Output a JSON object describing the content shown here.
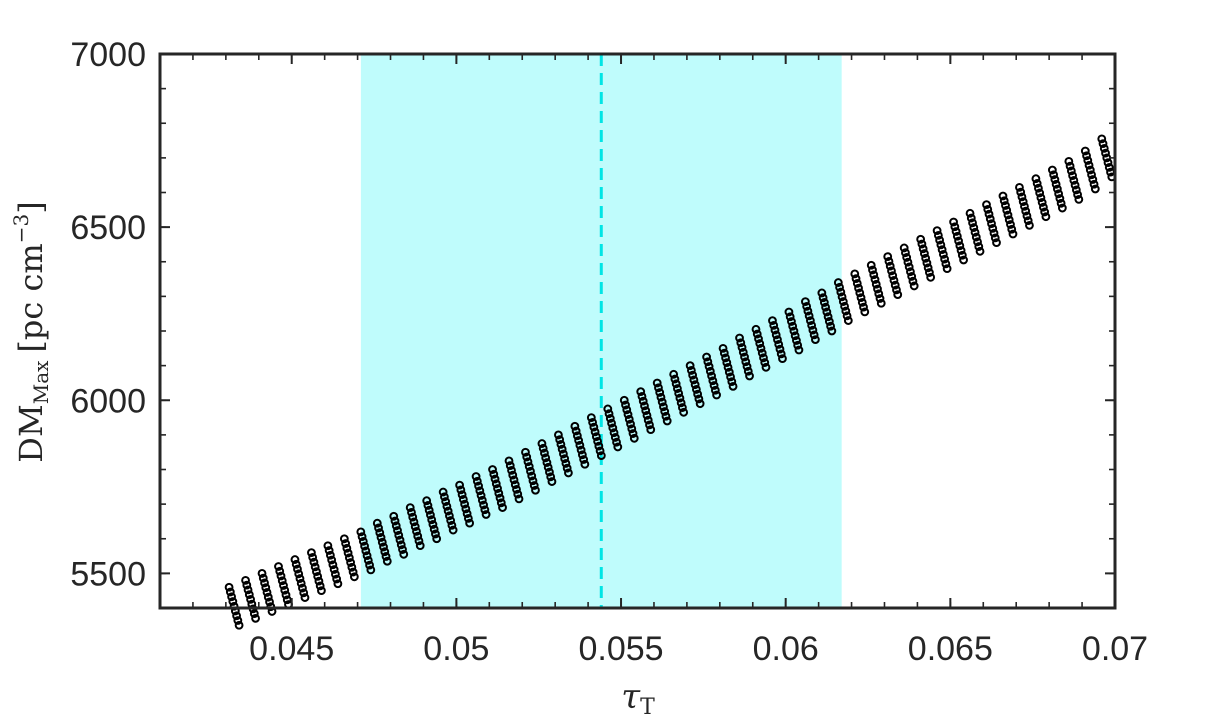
{
  "chart_data": {
    "type": "scatter",
    "title": "",
    "xlabel": {
      "symbol": "τ",
      "subscript": "T"
    },
    "ylabel": {
      "main": "DM",
      "subscript": "Max",
      "unit": "[pc cm",
      "superscript": "−3",
      "unit_close": "]"
    },
    "xlim": [
      0.041,
      0.07
    ],
    "ylim": [
      5400,
      7000
    ],
    "xticks": [
      0.045,
      0.05,
      0.055,
      0.06,
      0.065,
      0.07
    ],
    "xtick_labels": [
      "0.045",
      "0.05",
      "0.055",
      "0.06",
      "0.065",
      "0.07"
    ],
    "yticks": [
      5500,
      6000,
      6500,
      7000
    ],
    "ytick_labels": [
      "5500",
      "6000",
      "6500",
      "7000"
    ],
    "grid": false,
    "shaded_band": {
      "x_range": [
        0.0471,
        0.0617
      ],
      "color": "#bffcfc"
    },
    "vertical_line": {
      "x": 0.0544,
      "style": "dashed",
      "color": "#00e5e5"
    },
    "marker": {
      "shape": "open-circle",
      "color": "#000000"
    },
    "series": [
      {
        "description": "clusters of points, each cluster is a short diagonal streak; [x_center, y_center]",
        "clusters": [
          [
            0.04325,
            5405
          ],
          [
            0.04375,
            5425
          ],
          [
            0.04425,
            5445
          ],
          [
            0.04475,
            5465
          ],
          [
            0.04525,
            5485
          ],
          [
            0.04575,
            5505
          ],
          [
            0.04625,
            5525
          ],
          [
            0.04675,
            5545
          ],
          [
            0.04725,
            5565
          ],
          [
            0.04775,
            5590
          ],
          [
            0.04825,
            5610
          ],
          [
            0.04875,
            5635
          ],
          [
            0.04925,
            5655
          ],
          [
            0.04975,
            5680
          ],
          [
            0.05025,
            5700
          ],
          [
            0.05075,
            5725
          ],
          [
            0.05125,
            5745
          ],
          [
            0.05175,
            5770
          ],
          [
            0.05225,
            5795
          ],
          [
            0.05275,
            5820
          ],
          [
            0.05325,
            5845
          ],
          [
            0.05375,
            5870
          ],
          [
            0.05425,
            5895
          ],
          [
            0.05475,
            5920
          ],
          [
            0.05525,
            5945
          ],
          [
            0.05575,
            5970
          ],
          [
            0.05625,
            5995
          ],
          [
            0.05675,
            6020
          ],
          [
            0.05725,
            6045
          ],
          [
            0.05775,
            6070
          ],
          [
            0.05825,
            6095
          ],
          [
            0.05875,
            6125
          ],
          [
            0.05925,
            6150
          ],
          [
            0.05975,
            6175
          ],
          [
            0.06025,
            6200
          ],
          [
            0.06075,
            6230
          ],
          [
            0.06125,
            6255
          ],
          [
            0.06175,
            6285
          ],
          [
            0.06225,
            6310
          ],
          [
            0.06275,
            6335
          ],
          [
            0.06325,
            6360
          ],
          [
            0.06375,
            6385
          ],
          [
            0.06425,
            6410
          ],
          [
            0.06475,
            6435
          ],
          [
            0.06525,
            6460
          ],
          [
            0.06575,
            6485
          ],
          [
            0.06625,
            6510
          ],
          [
            0.06675,
            6535
          ],
          [
            0.06725,
            6560
          ],
          [
            0.06775,
            6585
          ],
          [
            0.06825,
            6610
          ],
          [
            0.06875,
            6635
          ],
          [
            0.06925,
            6665
          ],
          [
            0.06975,
            6700
          ]
        ]
      }
    ]
  }
}
